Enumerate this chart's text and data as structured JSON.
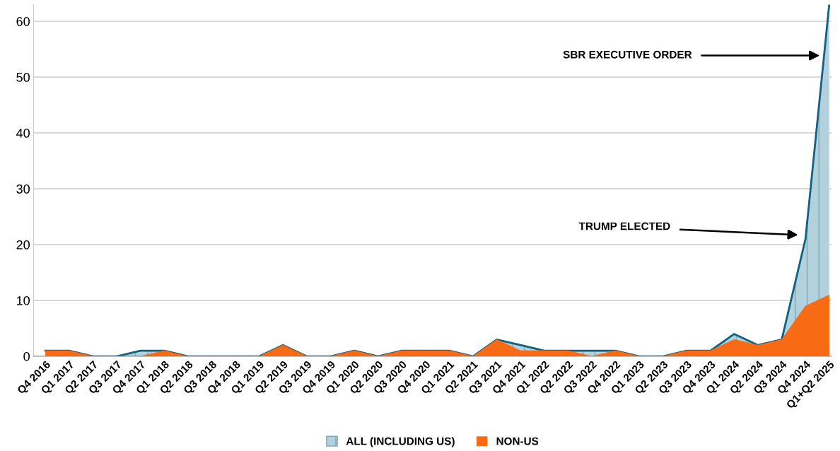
{
  "chart_data": {
    "type": "area",
    "categories": [
      "Q4 2016",
      "Q1 2017",
      "Q2 2017",
      "Q3 2017",
      "Q4 2017",
      "Q1 2018",
      "Q2 2018",
      "Q3 2018",
      "Q4 2018",
      "Q1 2019",
      "Q2 2019",
      "Q3 2019",
      "Q4 2019",
      "Q1 2020",
      "Q2 2020",
      "Q3 2020",
      "Q4 2020",
      "Q1 2021",
      "Q2 2021",
      "Q3 2021",
      "Q4 2021",
      "Q1 2022",
      "Q2 2022",
      "Q3 2022",
      "Q4 2022",
      "Q1 2023",
      "Q2 2023",
      "Q3 2023",
      "Q4 2023",
      "Q1 2024",
      "Q2 2024",
      "Q3 2024",
      "Q4 2024",
      "Q1+Q2 2025"
    ],
    "series": [
      {
        "name": "ALL (INCLUDING US)",
        "color": "#b3d0dc",
        "values": [
          1,
          1,
          0,
          0,
          1,
          1,
          0,
          0,
          0,
          0,
          2,
          0,
          0,
          1,
          0,
          1,
          1,
          1,
          0,
          3,
          2,
          1,
          1,
          1,
          1,
          0,
          0,
          1,
          1,
          4,
          2,
          3,
          21,
          63
        ]
      },
      {
        "name": "NON-US",
        "color": "#f96a14",
        "values": [
          1,
          1,
          0,
          0,
          0,
          1,
          0,
          0,
          0,
          0,
          2,
          0,
          0,
          1,
          0,
          1,
          1,
          1,
          0,
          3,
          1,
          1,
          1,
          0,
          1,
          0,
          0,
          1,
          1,
          3,
          2,
          3,
          9,
          11
        ]
      }
    ],
    "ylim": [
      0,
      63
    ],
    "yticks": [
      0,
      10,
      20,
      30,
      40,
      50,
      60
    ],
    "grid": "y",
    "legend": "bottom",
    "annotations": [
      "SBR EXECUTIVE ORDER",
      "TRUMP ELECTED"
    ]
  }
}
